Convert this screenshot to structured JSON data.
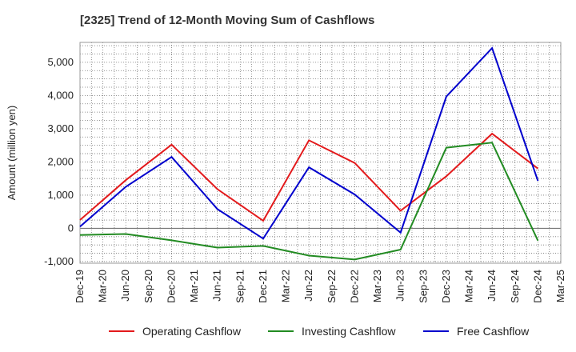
{
  "chart_data": {
    "type": "line",
    "title": "[2325]  Trend of 12-Month Moving Sum of Cashflows",
    "xlabel": "",
    "ylabel": "Amount (million yen)",
    "ylim": [
      -1050,
      5600
    ],
    "y_ticks": [
      -1000,
      0,
      1000,
      2000,
      3000,
      4000,
      5000
    ],
    "y_tick_labels": [
      "-1,000",
      "0",
      "1,000",
      "2,000",
      "3,000",
      "4,000",
      "5,000"
    ],
    "x_ticks": [
      "Dec-19",
      "Mar-20",
      "Jun-20",
      "Sep-20",
      "Dec-20",
      "Mar-21",
      "Jun-21",
      "Sep-21",
      "Dec-21",
      "Mar-22",
      "Jun-22",
      "Sep-22",
      "Dec-22",
      "Mar-23",
      "Jun-23",
      "Sep-23",
      "Dec-23",
      "Mar-24",
      "Jun-24",
      "Sep-24",
      "Dec-24",
      "Mar-25"
    ],
    "grid": true,
    "legend_position": "bottom",
    "series": [
      {
        "name": "Operating Cashflow",
        "color": "#e31a1c",
        "points": [
          [
            "Dec-19",
            250
          ],
          [
            "Jun-20",
            1450
          ],
          [
            "Dec-20",
            2520
          ],
          [
            "Jun-21",
            1180
          ],
          [
            "Dec-21",
            230
          ],
          [
            "Jun-22",
            2650
          ],
          [
            "Dec-22",
            1970
          ],
          [
            "Jun-23",
            530
          ],
          [
            "Dec-23",
            1570
          ],
          [
            "Jun-24",
            2850
          ],
          [
            "Dec-24",
            1800
          ]
        ]
      },
      {
        "name": "Investing Cashflow",
        "color": "#228b22",
        "points": [
          [
            "Dec-19",
            -200
          ],
          [
            "Jun-20",
            -170
          ],
          [
            "Dec-20",
            -360
          ],
          [
            "Jun-21",
            -580
          ],
          [
            "Dec-21",
            -530
          ],
          [
            "Jun-22",
            -820
          ],
          [
            "Dec-22",
            -940
          ],
          [
            "Jun-23",
            -640
          ],
          [
            "Dec-23",
            2430
          ],
          [
            "Jun-24",
            2580
          ],
          [
            "Dec-24",
            -370
          ]
        ]
      },
      {
        "name": "Free Cashflow",
        "color": "#0000cd",
        "points": [
          [
            "Dec-19",
            50
          ],
          [
            "Jun-20",
            1250
          ],
          [
            "Dec-20",
            2150
          ],
          [
            "Jun-21",
            580
          ],
          [
            "Dec-21",
            -310
          ],
          [
            "Jun-22",
            1840
          ],
          [
            "Dec-22",
            1020
          ],
          [
            "Jun-23",
            -130
          ],
          [
            "Dec-23",
            3970
          ],
          [
            "Jun-24",
            5430
          ],
          [
            "Dec-24",
            1430
          ]
        ]
      }
    ]
  }
}
